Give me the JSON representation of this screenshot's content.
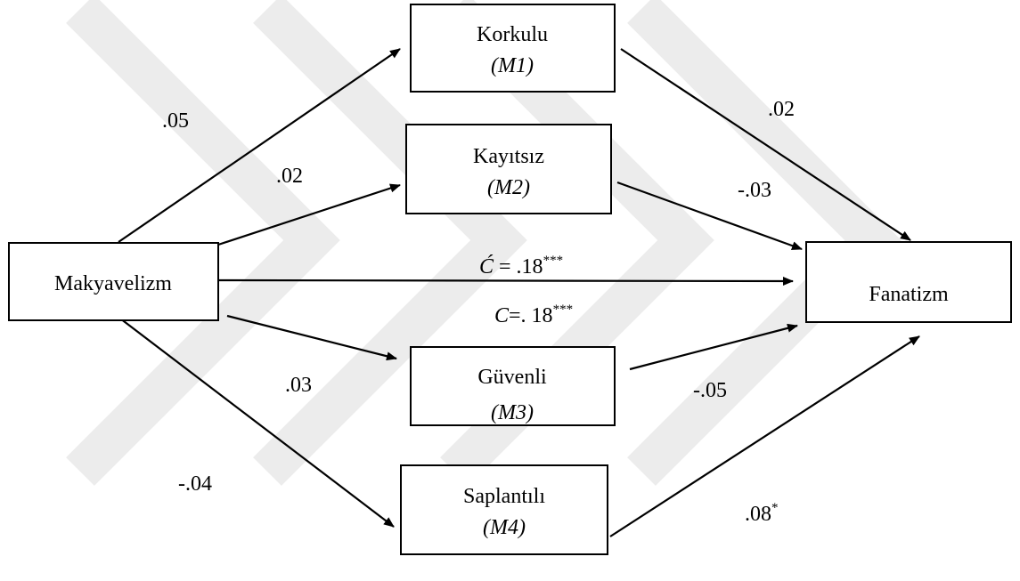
{
  "nodes": [
    {
      "label": "Makyavelizm"
    },
    {
      "label": "Korkulu",
      "code": "(M1)"
    },
    {
      "label": "Kayıtsız",
      "code": "(M2)"
    },
    {
      "label": "Güvenli",
      "code": "(M3)"
    },
    {
      "label": "Saplantılı",
      "code": "(M4)"
    },
    {
      "label": "Fanatizm"
    }
  ],
  "edges": [
    {
      "label": ".05"
    },
    {
      "label": ".02"
    },
    {
      "label": ".03"
    },
    {
      "label": "-.04"
    },
    {
      "label": ".02"
    },
    {
      "label": "-.03"
    },
    {
      "label": "-.05"
    },
    {
      "label": ".08",
      "sup": "*"
    }
  ],
  "direct_effect": {
    "symbol": "Ć",
    "rest": " = .18",
    "sup": "***"
  },
  "total_effect": {
    "symbol": "C",
    "rest": "=. 18",
    "sup": "***"
  }
}
